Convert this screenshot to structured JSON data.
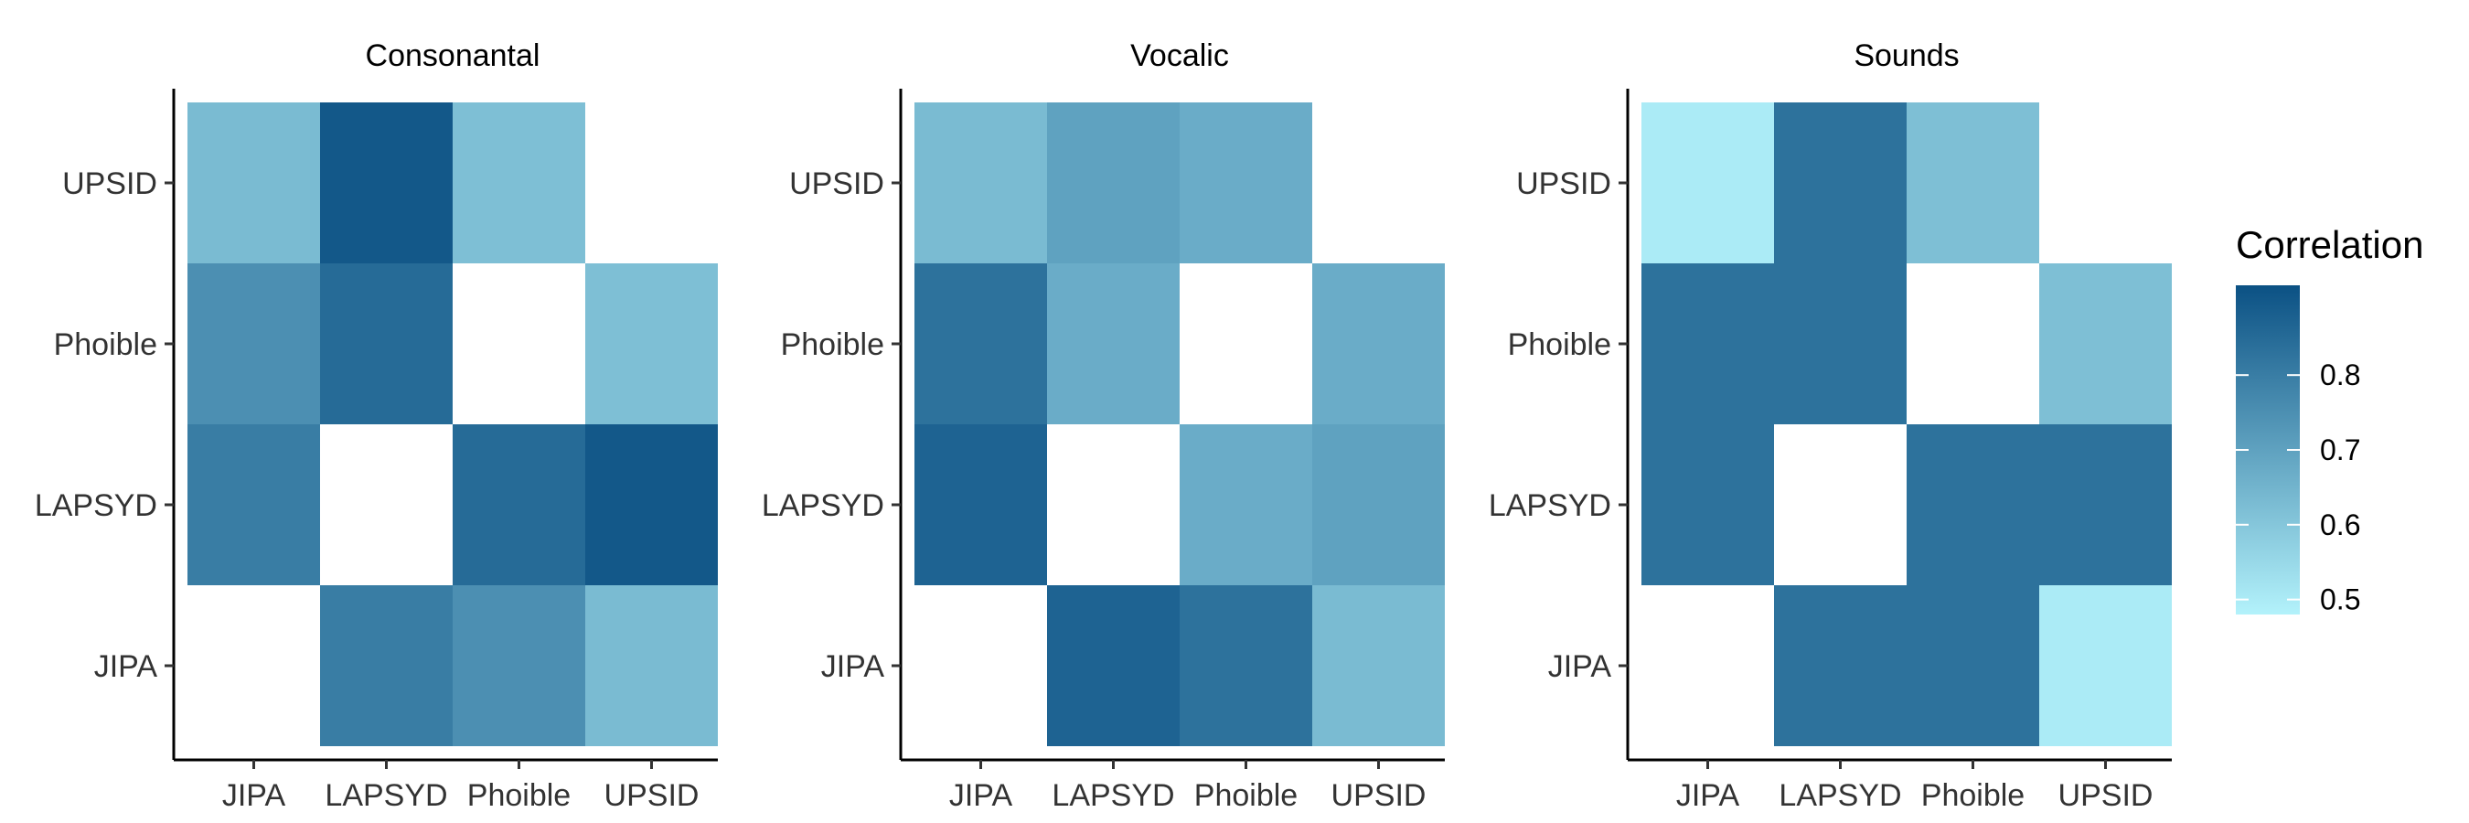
{
  "chart_data": [
    {
      "type": "heatmap",
      "title": "Consonantal",
      "x": [
        "JIPA",
        "LAPSYD",
        "Phoible",
        "UPSID"
      ],
      "y": [
        "JIPA",
        "LAPSYD",
        "Phoible",
        "UPSID"
      ],
      "values": [
        [
          null,
          0.8,
          0.75,
          0.63
        ],
        [
          0.8,
          null,
          0.85,
          0.9
        ],
        [
          0.75,
          0.85,
          null,
          0.62
        ],
        [
          0.63,
          0.9,
          0.62,
          null
        ]
      ]
    },
    {
      "type": "heatmap",
      "title": "Vocalic",
      "x": [
        "JIPA",
        "LAPSYD",
        "Phoible",
        "UPSID"
      ],
      "y": [
        "JIPA",
        "LAPSYD",
        "Phoible",
        "UPSID"
      ],
      "values": [
        [
          null,
          0.87,
          0.83,
          0.63
        ],
        [
          0.87,
          null,
          0.67,
          0.7
        ],
        [
          0.83,
          0.67,
          null,
          0.67
        ],
        [
          0.63,
          0.7,
          0.67,
          null
        ]
      ]
    },
    {
      "type": "heatmap",
      "title": "Sounds",
      "x": [
        "JIPA",
        "LAPSYD",
        "Phoible",
        "UPSID"
      ],
      "y": [
        "JIPA",
        "LAPSYD",
        "Phoible",
        "UPSID"
      ],
      "values": [
        [
          null,
          0.83,
          0.83,
          0.5
        ],
        [
          0.83,
          null,
          0.83,
          0.83
        ],
        [
          0.83,
          0.83,
          null,
          0.62
        ],
        [
          0.5,
          0.83,
          0.62,
          null
        ]
      ]
    }
  ],
  "legend": {
    "title": "Correlation",
    "ticks": [
      "0.5",
      "0.6",
      "0.7",
      "0.8"
    ],
    "range": [
      0.48,
      0.92
    ],
    "low_color": "#b3f2fb",
    "high_color": "#0b5184",
    "missing_color": "#ffffff"
  }
}
